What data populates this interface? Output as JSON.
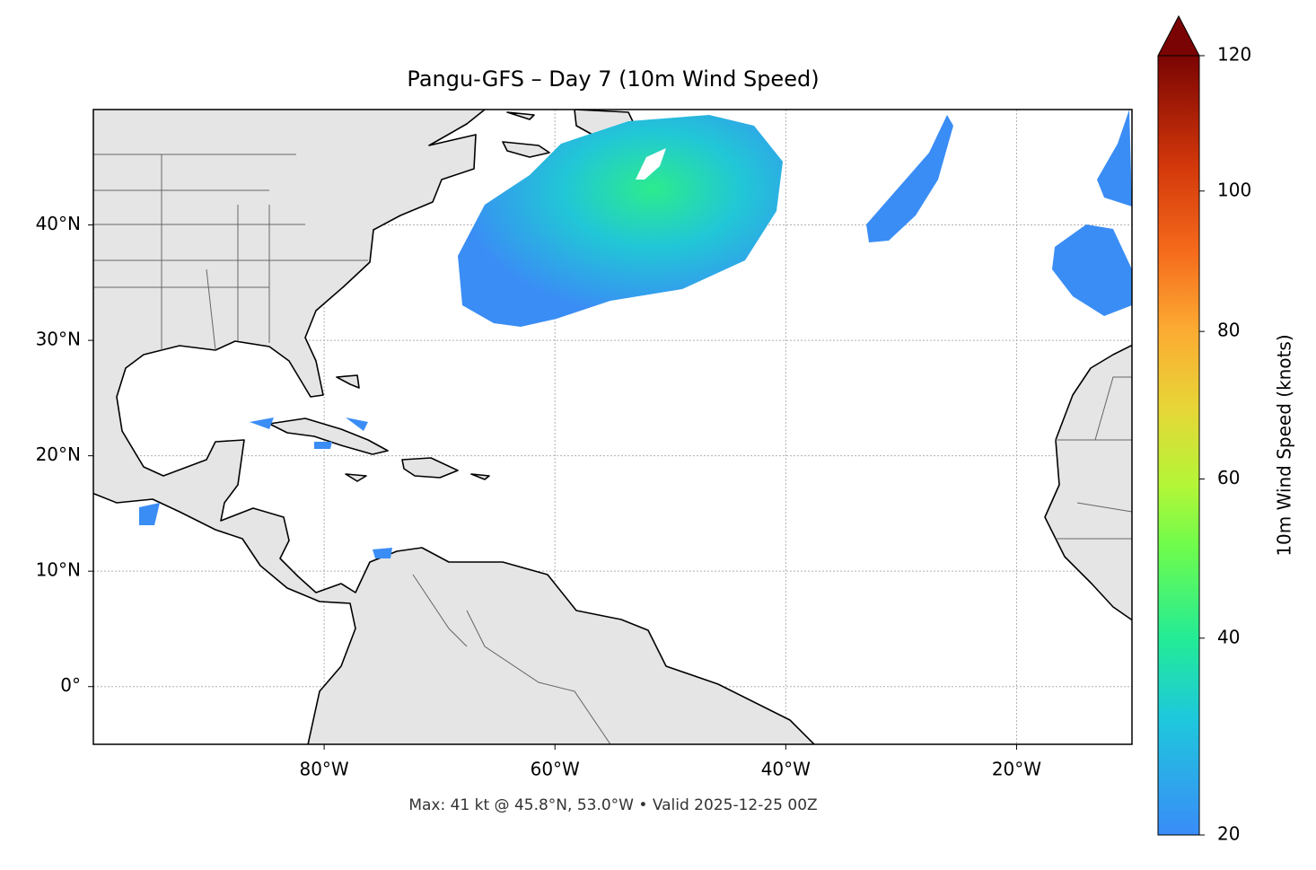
{
  "chart_data": {
    "type": "map",
    "title": "Pangu-GFS – Day 7 (10m Wind Speed)",
    "footer": "Max: 41 kt @ 45.8°N, 53.0°W • Valid 2025-12-25 00Z",
    "xlim": [
      -100,
      -10
    ],
    "ylim": [
      -5,
      50
    ],
    "xticks": [
      {
        "value": -80,
        "label": "80°W"
      },
      {
        "value": -60,
        "label": "60°W"
      },
      {
        "value": -40,
        "label": "40°W"
      },
      {
        "value": -20,
        "label": "20°W"
      }
    ],
    "yticks": [
      {
        "value": 0,
        "label": "0°"
      },
      {
        "value": 10,
        "label": "10°N"
      },
      {
        "value": 20,
        "label": "20°N"
      },
      {
        "value": 30,
        "label": "30°N"
      },
      {
        "value": 40,
        "label": "40°N"
      }
    ],
    "grid": true,
    "colorbar": {
      "label": "10m Wind Speed (knots)",
      "lim": [
        20,
        120
      ],
      "ticks": [
        20,
        40,
        60,
        80,
        100,
        120
      ]
    }
  }
}
